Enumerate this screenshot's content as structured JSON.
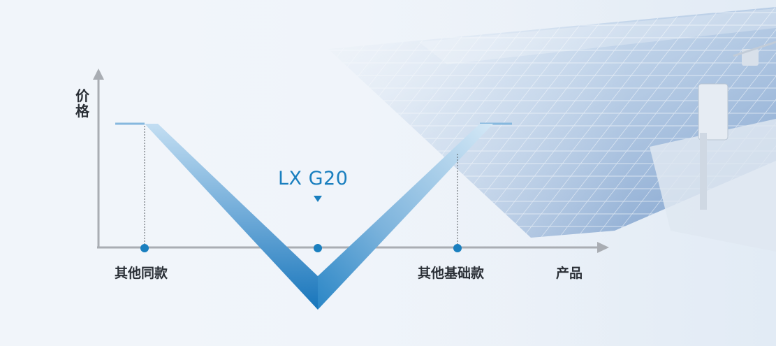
{
  "axis": {
    "y_label": "价格",
    "x_label": "产品"
  },
  "markers": {
    "left": "其他同款",
    "center": "LX G20",
    "right": "其他基础款"
  },
  "colors": {
    "accent_blue": "#1a7fbf",
    "v_gradient_light": "#b9d8ef",
    "v_gradient_dark": "#1b7cc0",
    "axis_gray": "#a9adb3",
    "text_dark": "#2a2f36"
  },
  "icons": {
    "pointer": "triangle-down-icon",
    "axis_arrow": "arrow-icon"
  }
}
